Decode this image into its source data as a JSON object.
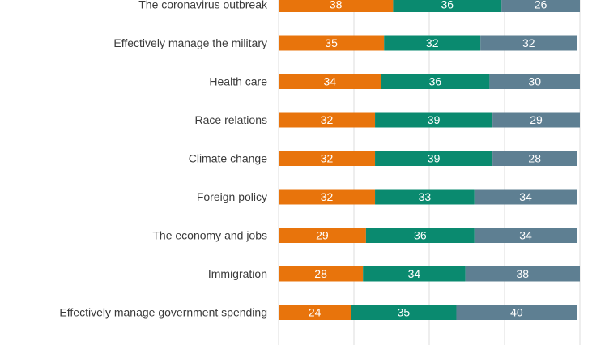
{
  "colors": {
    "series_a": "#E8740C",
    "series_b": "#0A8A6F",
    "series_c": "#5E7F92",
    "grid": "#DCDCDC",
    "text": "#3A3A3A"
  },
  "chart_data": {
    "type": "bar",
    "orientation": "horizontal",
    "stacked": true,
    "title": "",
    "xlabel": "",
    "ylabel": "",
    "xlim": [
      0,
      100
    ],
    "grid": true,
    "legend": "none",
    "categories": [
      "The coronavirus outbreak",
      "Effectively manage the military",
      "Health care",
      "Race relations",
      "Climate change",
      "Foreign policy",
      "The economy and jobs",
      "Immigration",
      "Effectively manage government spending"
    ],
    "series": [
      {
        "values": [
          38,
          35,
          34,
          32,
          32,
          32,
          29,
          28,
          24
        ]
      },
      {
        "values": [
          36,
          32,
          36,
          39,
          39,
          33,
          36,
          34,
          35
        ]
      },
      {
        "values": [
          26,
          32,
          30,
          29,
          28,
          34,
          34,
          38,
          40
        ]
      }
    ]
  }
}
